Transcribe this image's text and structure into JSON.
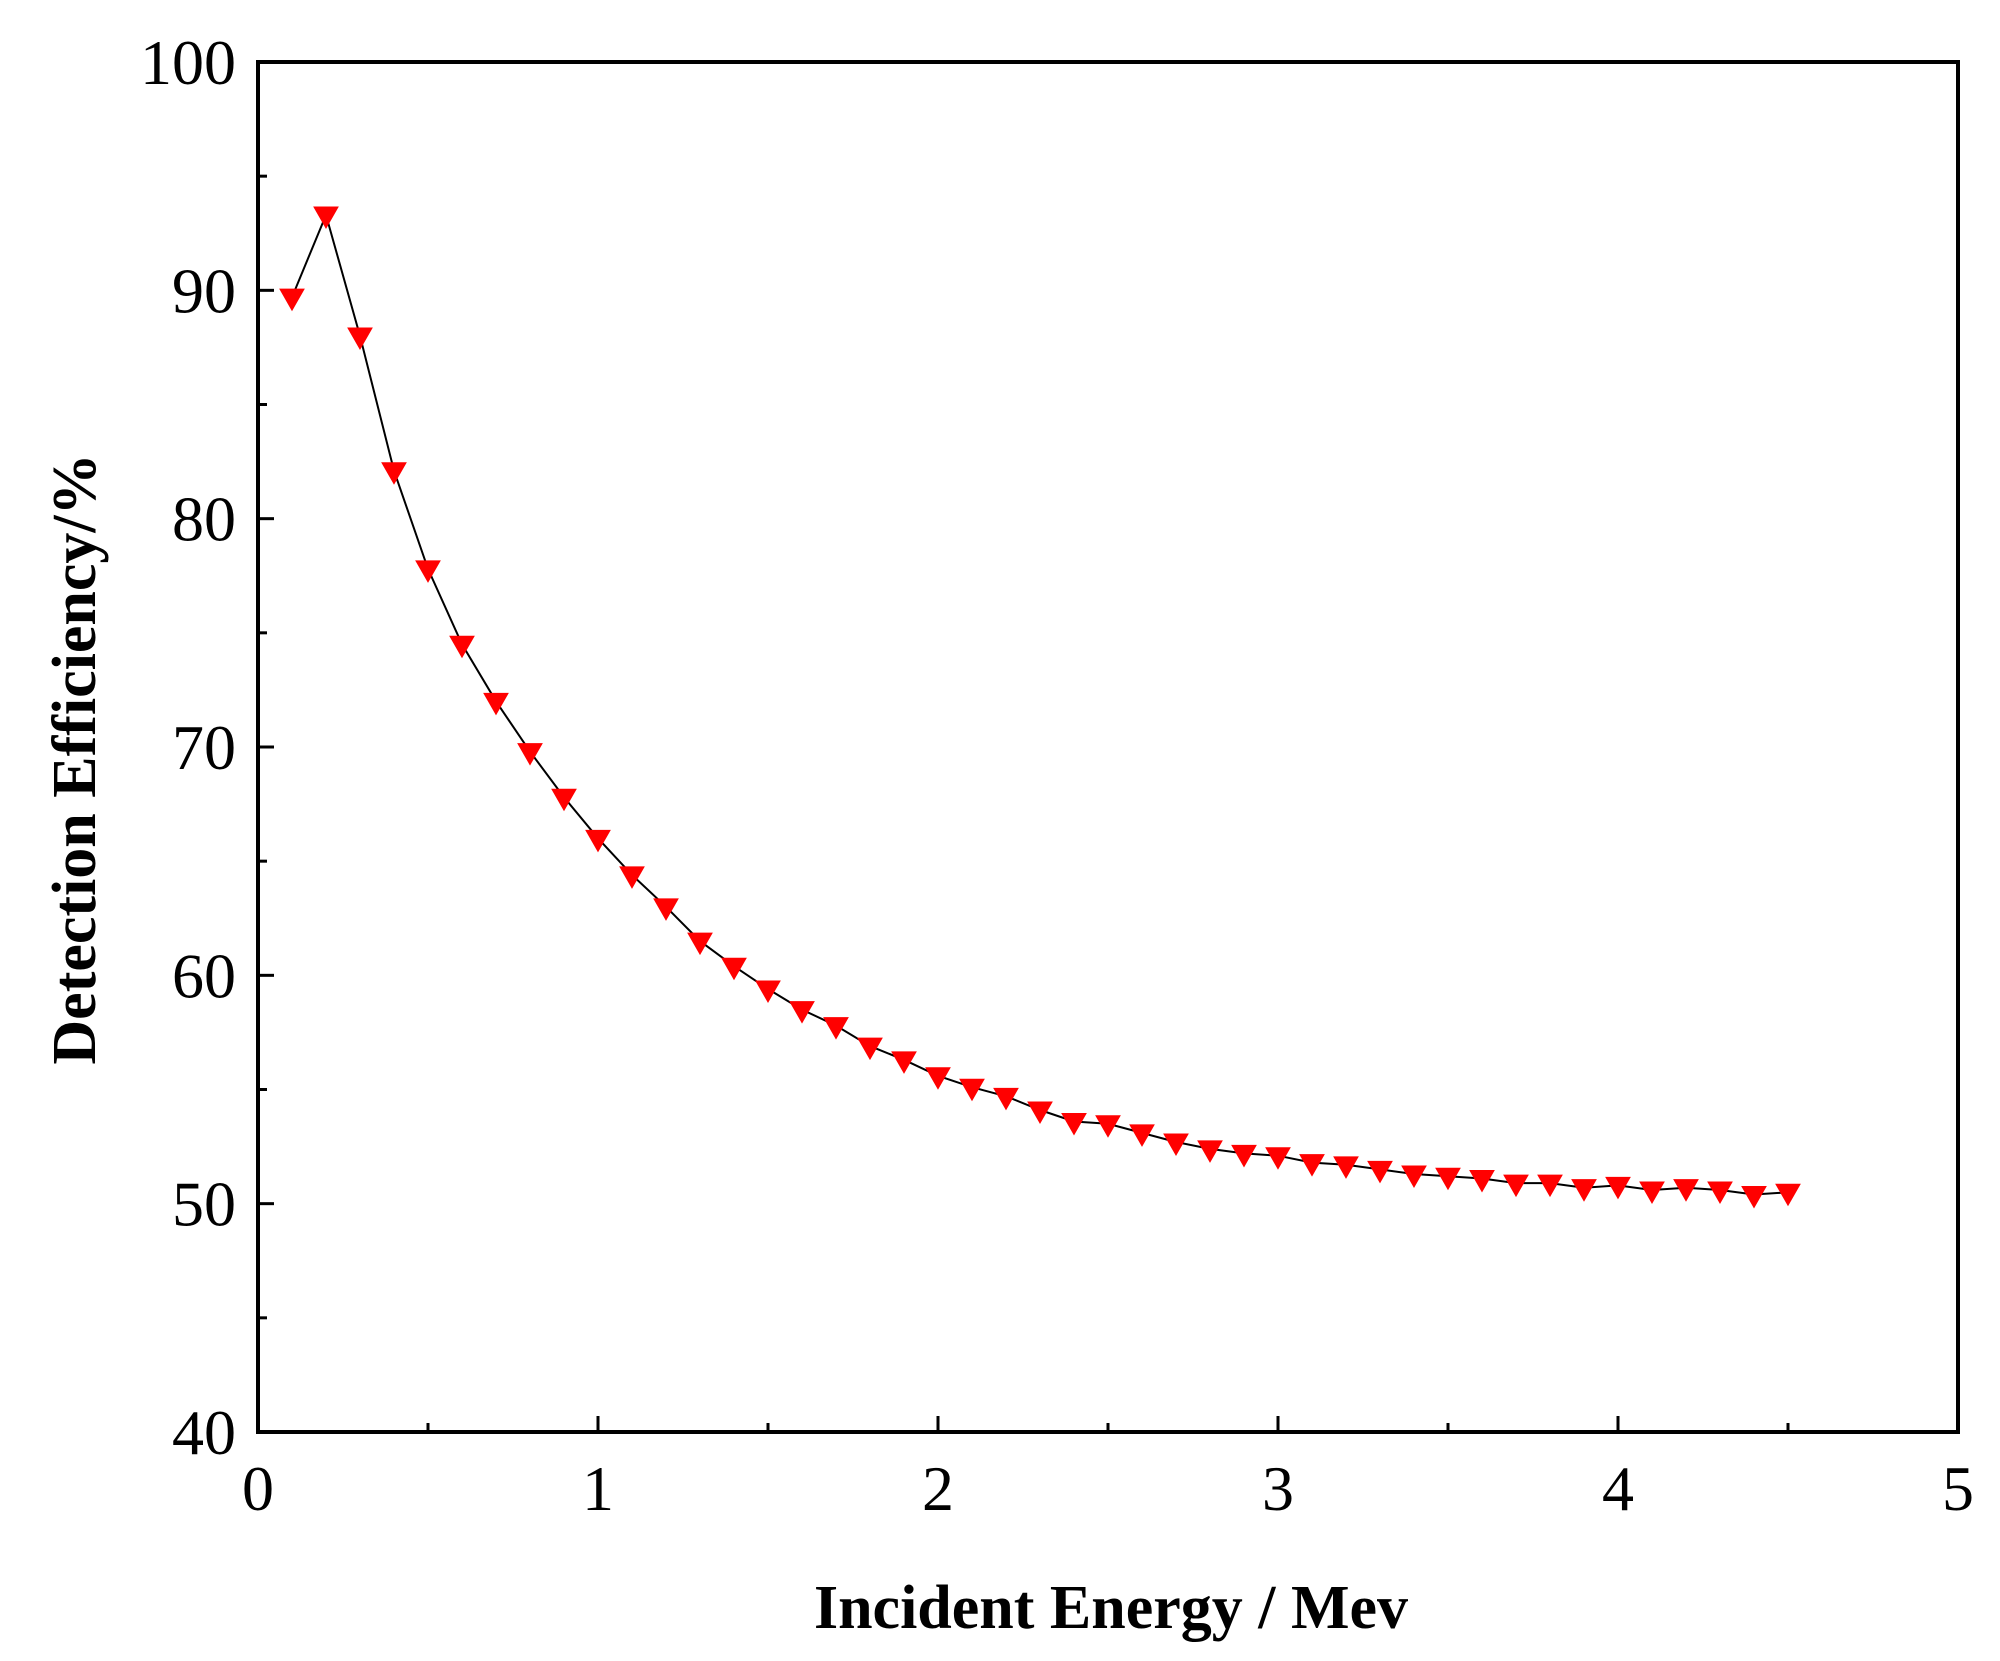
{
  "chart_data": {
    "type": "line",
    "title": "",
    "xlabel": "Incident Energy / Mev",
    "ylabel": "Detection Efficiency/%",
    "xlim": [
      0,
      5
    ],
    "ylim": [
      40,
      100
    ],
    "x_ticks": [
      {
        "value": 0,
        "label": "0"
      },
      {
        "value": 1,
        "label": "1"
      },
      {
        "value": 2,
        "label": "2"
      },
      {
        "value": 3,
        "label": "3"
      },
      {
        "value": 4,
        "label": "4"
      },
      {
        "value": 5,
        "label": "5"
      }
    ],
    "x_minor_ticks": [
      0.5,
      1.5,
      2.5,
      3.5,
      4.5
    ],
    "y_ticks": [
      {
        "value": 40,
        "label": "40"
      },
      {
        "value": 50,
        "label": "50"
      },
      {
        "value": 60,
        "label": "60"
      },
      {
        "value": 70,
        "label": "70"
      },
      {
        "value": 80,
        "label": "80"
      },
      {
        "value": 90,
        "label": "90"
      },
      {
        "value": 100,
        "label": "100"
      }
    ],
    "y_minor_ticks": [
      45,
      55,
      65,
      75,
      85,
      95
    ],
    "grid": false,
    "legend": "none",
    "series": [
      {
        "name": "Detection Efficiency",
        "marker": "down-triangle",
        "marker_color": "#ff0000",
        "line_color": "#000000",
        "x": [
          0.1,
          0.2,
          0.3,
          0.4,
          0.5,
          0.6,
          0.7,
          0.8,
          0.9,
          1.0,
          1.1,
          1.2,
          1.3,
          1.4,
          1.5,
          1.6,
          1.7,
          1.8,
          1.9,
          2.0,
          2.1,
          2.2,
          2.3,
          2.4,
          2.5,
          2.6,
          2.7,
          2.8,
          2.9,
          3.0,
          3.1,
          3.2,
          3.3,
          3.4,
          3.5,
          3.6,
          3.7,
          3.8,
          3.9,
          4.0,
          4.1,
          4.2,
          4.3,
          4.4,
          4.5
        ],
        "values": [
          89.7,
          93.3,
          88.0,
          82.1,
          77.8,
          74.5,
          72.0,
          69.8,
          67.8,
          66.0,
          64.4,
          63.0,
          61.5,
          60.4,
          59.4,
          58.5,
          57.8,
          56.9,
          56.3,
          55.6,
          55.1,
          54.7,
          54.1,
          53.6,
          53.5,
          53.1,
          52.7,
          52.4,
          52.2,
          52.1,
          51.8,
          51.7,
          51.5,
          51.3,
          51.2,
          51.1,
          50.9,
          50.9,
          50.7,
          50.8,
          50.6,
          50.7,
          50.6,
          50.4,
          50.5
        ]
      }
    ]
  }
}
